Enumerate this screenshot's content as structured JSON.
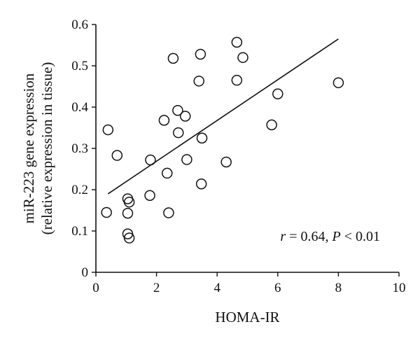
{
  "chart_data": {
    "type": "scatter",
    "xlabel": "HOMA-IR",
    "ylabel_line1": "miR-223 gene expression",
    "ylabel_line2": "(relative expression in tissue)",
    "xlim": [
      0,
      10
    ],
    "ylim": [
      0,
      0.6
    ],
    "xticks": [
      "0",
      "2",
      "4",
      "6",
      "8",
      "10"
    ],
    "yticks": [
      "0",
      "0.1",
      "0.2",
      "0.3",
      "0.4",
      "0.5",
      "0.6"
    ],
    "grid": false,
    "legend": "none",
    "annotation": {
      "r_symbol": "r",
      "r_text": " = 0.64, ",
      "p_symbol": "P",
      "p_text": " < 0.01"
    },
    "trendline": {
      "x": [
        0.4,
        8.0
      ],
      "y": [
        0.19,
        0.565
      ]
    },
    "points": [
      {
        "x": 0.4,
        "y": 0.345
      },
      {
        "x": 0.7,
        "y": 0.283
      },
      {
        "x": 0.35,
        "y": 0.145
      },
      {
        "x": 1.05,
        "y": 0.178
      },
      {
        "x": 1.1,
        "y": 0.17
      },
      {
        "x": 1.05,
        "y": 0.143
      },
      {
        "x": 1.05,
        "y": 0.093
      },
      {
        "x": 1.1,
        "y": 0.083
      },
      {
        "x": 1.8,
        "y": 0.272
      },
      {
        "x": 1.78,
        "y": 0.186
      },
      {
        "x": 2.25,
        "y": 0.368
      },
      {
        "x": 2.35,
        "y": 0.24
      },
      {
        "x": 2.4,
        "y": 0.144
      },
      {
        "x": 2.55,
        "y": 0.518
      },
      {
        "x": 2.7,
        "y": 0.392
      },
      {
        "x": 2.72,
        "y": 0.338
      },
      {
        "x": 2.95,
        "y": 0.378
      },
      {
        "x": 3.0,
        "y": 0.273
      },
      {
        "x": 3.4,
        "y": 0.463
      },
      {
        "x": 3.45,
        "y": 0.528
      },
      {
        "x": 3.5,
        "y": 0.325
      },
      {
        "x": 3.48,
        "y": 0.214
      },
      {
        "x": 4.3,
        "y": 0.267
      },
      {
        "x": 4.65,
        "y": 0.557
      },
      {
        "x": 4.65,
        "y": 0.465
      },
      {
        "x": 4.85,
        "y": 0.52
      },
      {
        "x": 5.8,
        "y": 0.357
      },
      {
        "x": 6.0,
        "y": 0.432
      },
      {
        "x": 8.0,
        "y": 0.459
      }
    ]
  }
}
